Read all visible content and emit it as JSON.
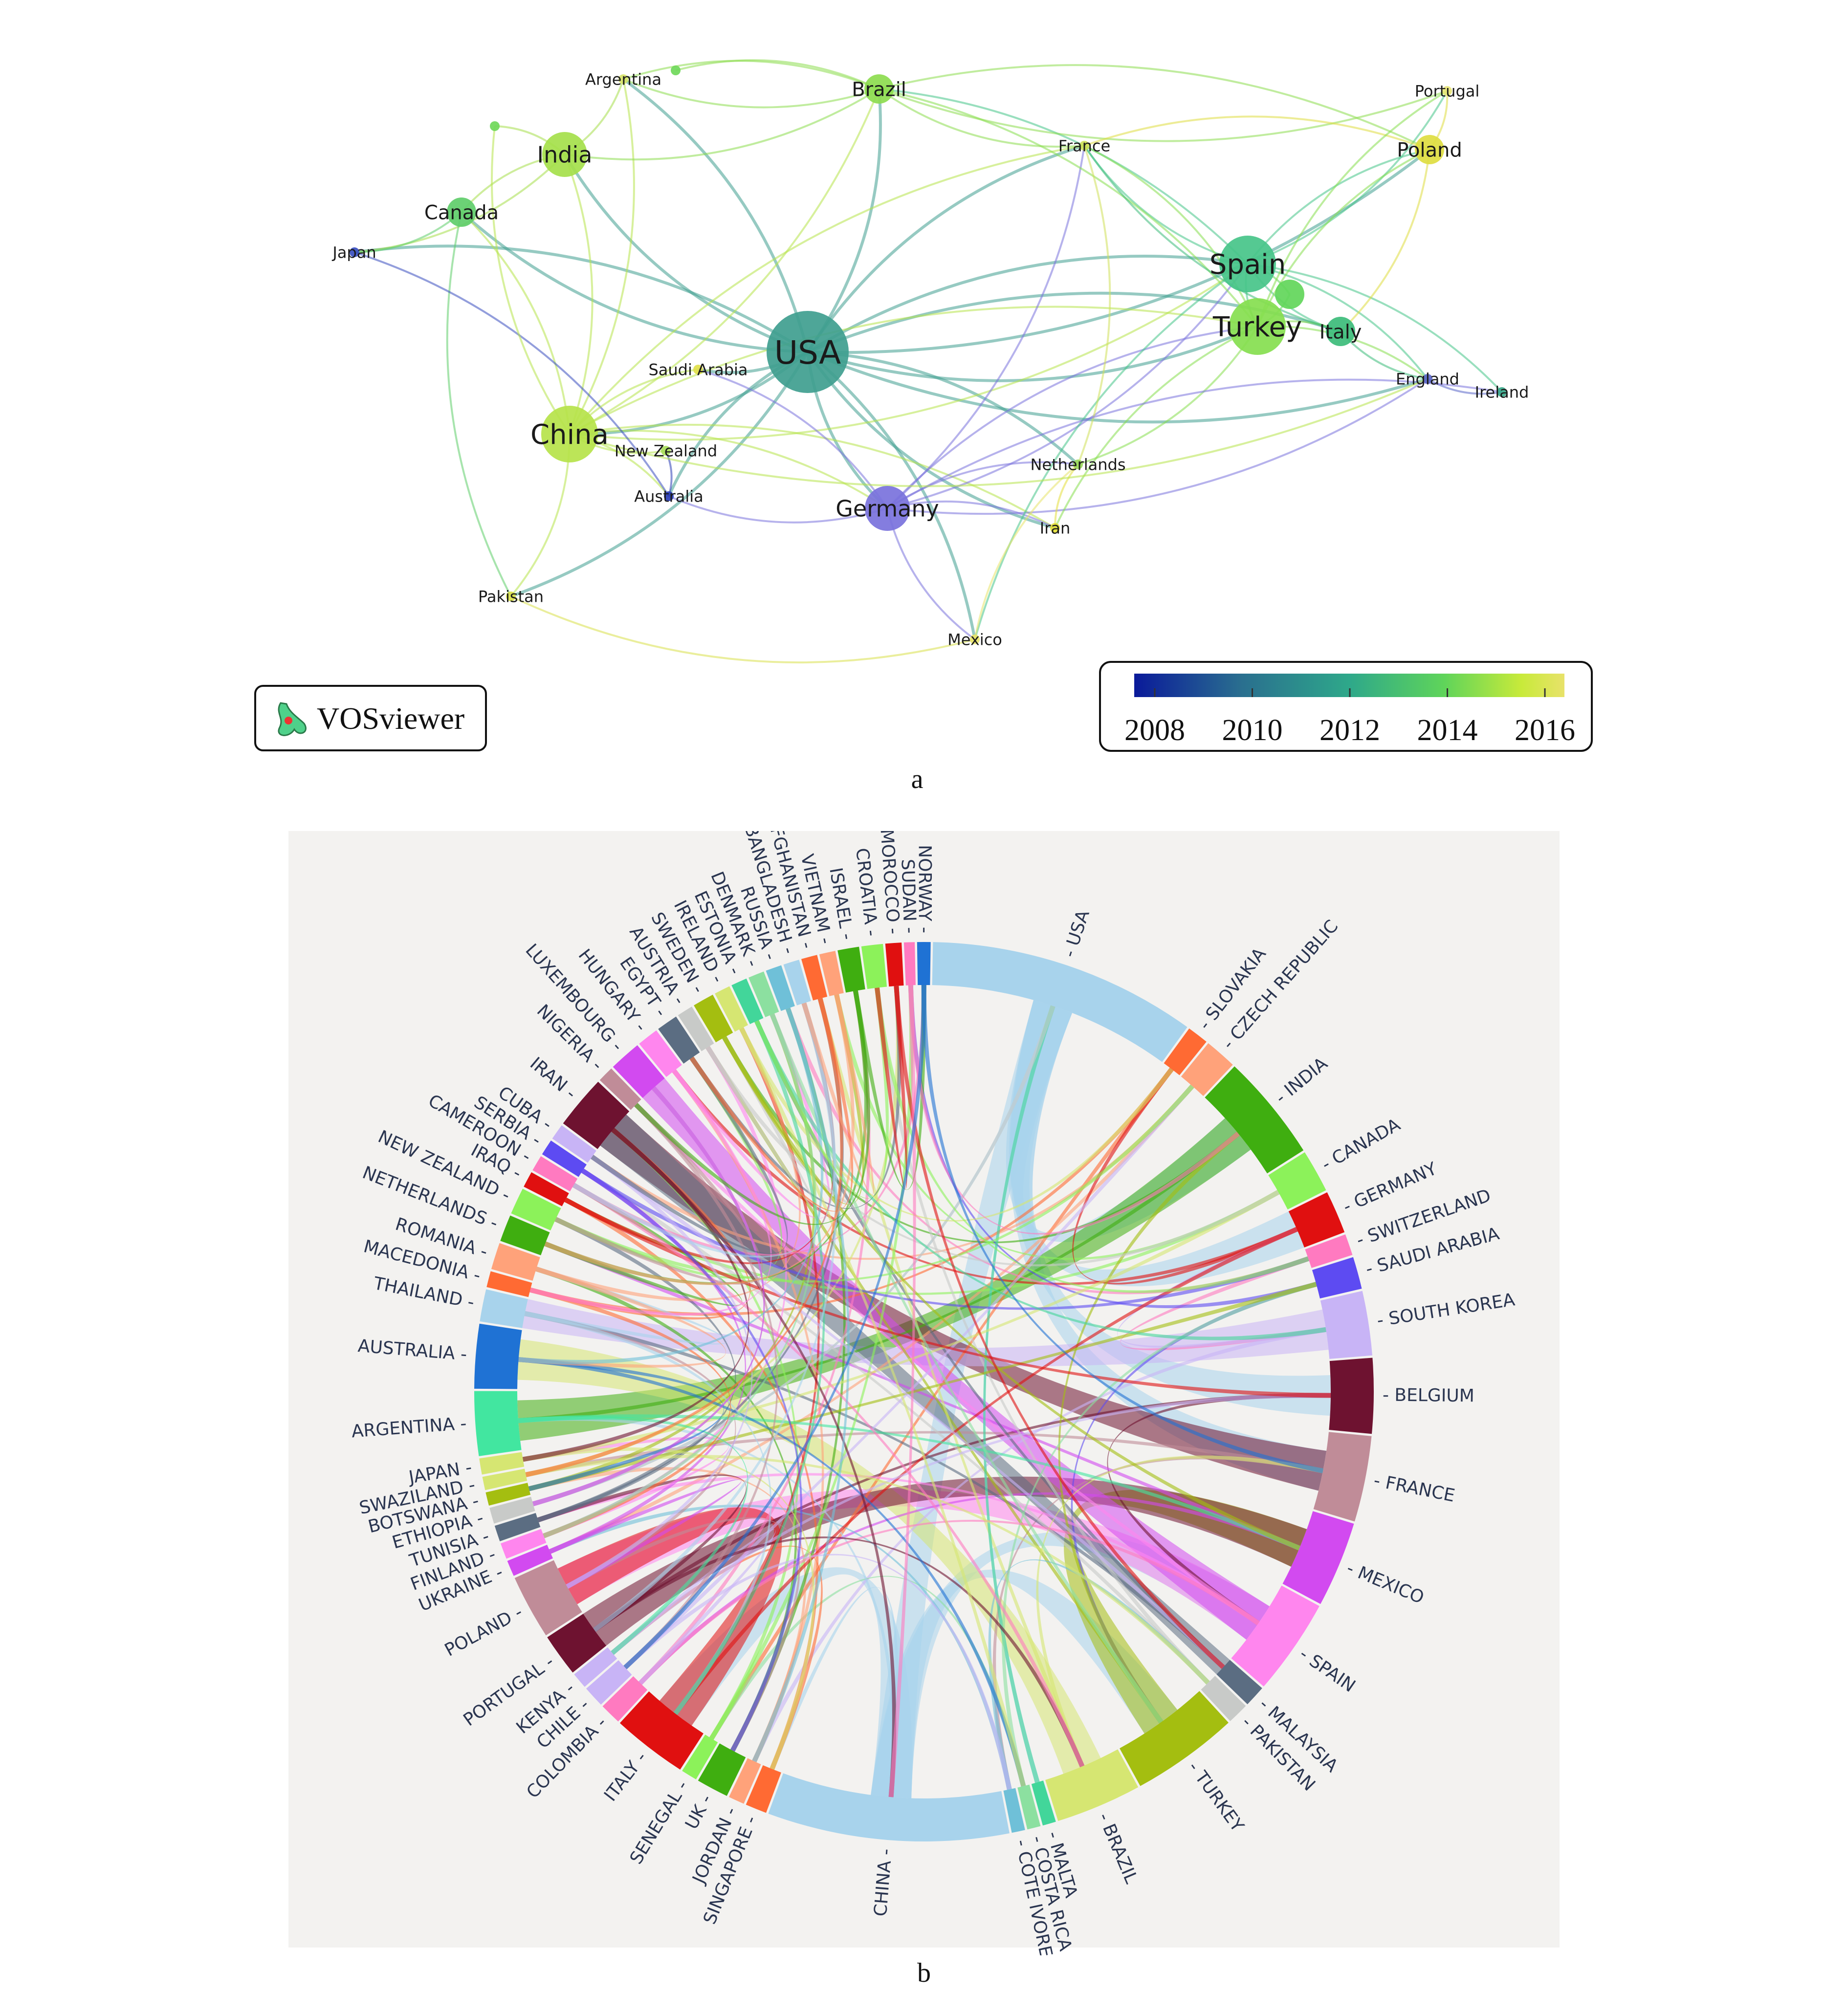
{
  "panel_a": {
    "caption": "a",
    "logo_text": "VOSviewer",
    "colorbar": {
      "ticks": [
        "2008",
        "2010",
        "2012",
        "2014",
        "2016"
      ],
      "stops": [
        "#0a1a9a",
        "#2a6f8f",
        "#2ea88a",
        "#5fd45a",
        "#c8ea3a",
        "#e8e26a"
      ]
    },
    "nodes": [
      {
        "id": "usa",
        "label": "USA",
        "color": "#3f9e8f",
        "size": "xl"
      },
      {
        "id": "china",
        "label": "China",
        "color": "#b6e34a",
        "size": "l"
      },
      {
        "id": "germany",
        "label": "Germany",
        "color": "#7a72dc",
        "size": "m"
      },
      {
        "id": "spain",
        "label": "Spain",
        "color": "#46c489",
        "size": "l"
      },
      {
        "id": "turkey",
        "label": "Turkey",
        "color": "#86de4f",
        "size": "l"
      },
      {
        "id": "india",
        "label": "India",
        "color": "#a5df4b",
        "size": "m"
      },
      {
        "id": "brazil",
        "label": "Brazil",
        "color": "#8ddc4f",
        "size": "s"
      },
      {
        "id": "france",
        "label": "France",
        "color": "#cfe05a",
        "size": "xs"
      },
      {
        "id": "poland",
        "label": "Poland",
        "color": "#dedd40",
        "size": "s"
      },
      {
        "id": "portugal",
        "label": "Portugal",
        "color": "#e9e67a",
        "size": "xs"
      },
      {
        "id": "italy",
        "label": "Italy",
        "color": "#3cbc7a",
        "size": "s"
      },
      {
        "id": "england",
        "label": "England",
        "color": "#5a66c8",
        "size": "xs"
      },
      {
        "id": "ireland",
        "label": "Ireland",
        "color": "#3aa88a",
        "size": "xs"
      },
      {
        "id": "netherlands",
        "label": "Netherlands",
        "color": "#9ad85c",
        "size": "xs"
      },
      {
        "id": "iran",
        "label": "Iran",
        "color": "#e3df3a",
        "size": "xs"
      },
      {
        "id": "mexico",
        "label": "Mexico",
        "color": "#e8e46a",
        "size": "xs"
      },
      {
        "id": "pakistan",
        "label": "Pakistan",
        "color": "#d9e04a",
        "size": "xs"
      },
      {
        "id": "australia",
        "label": "Australia",
        "color": "#2a3db5",
        "size": "xs"
      },
      {
        "id": "newzealand",
        "label": "New Zealand",
        "color": "#a8de5a",
        "size": "xs"
      },
      {
        "id": "saudiarabia",
        "label": "Saudi Arabia",
        "color": "#e1e04a",
        "size": "xs"
      },
      {
        "id": "japan",
        "label": "Japan",
        "color": "#3a4fc0",
        "size": "xs"
      },
      {
        "id": "canada",
        "label": "Canada",
        "color": "#5fcd6a",
        "size": "s"
      },
      {
        "id": "argentina",
        "label": "Argentina",
        "color": "#d8e46a",
        "size": "xs"
      },
      {
        "id": "unl1",
        "label": "",
        "color": "#6fd85a",
        "size": "xs"
      },
      {
        "id": "unl2",
        "label": "",
        "color": "#6fd85a",
        "size": "xs"
      },
      {
        "id": "unl3",
        "label": "",
        "color": "#62d65a",
        "size": "s"
      }
    ],
    "links": [
      [
        "usa",
        "china"
      ],
      [
        "usa",
        "germany"
      ],
      [
        "usa",
        "spain"
      ],
      [
        "usa",
        "turkey"
      ],
      [
        "usa",
        "india"
      ],
      [
        "usa",
        "brazil"
      ],
      [
        "usa",
        "france"
      ],
      [
        "usa",
        "poland"
      ],
      [
        "usa",
        "italy"
      ],
      [
        "usa",
        "england"
      ],
      [
        "usa",
        "canada"
      ],
      [
        "usa",
        "japan"
      ],
      [
        "usa",
        "netherlands"
      ],
      [
        "usa",
        "iran"
      ],
      [
        "usa",
        "mexico"
      ],
      [
        "usa",
        "australia"
      ],
      [
        "usa",
        "saudiarabia"
      ],
      [
        "usa",
        "argentina"
      ],
      [
        "usa",
        "pakistan"
      ],
      [
        "china",
        "india"
      ],
      [
        "china",
        "pakistan"
      ],
      [
        "china",
        "canada"
      ],
      [
        "china",
        "germany"
      ],
      [
        "china",
        "spain"
      ],
      [
        "china",
        "turkey"
      ],
      [
        "china",
        "brazil"
      ],
      [
        "china",
        "france"
      ],
      [
        "china",
        "newzealand"
      ],
      [
        "china",
        "australia"
      ],
      [
        "china",
        "argentina"
      ],
      [
        "china",
        "iran"
      ],
      [
        "germany",
        "spain"
      ],
      [
        "germany",
        "turkey"
      ],
      [
        "germany",
        "france"
      ],
      [
        "germany",
        "iran"
      ],
      [
        "germany",
        "mexico"
      ],
      [
        "germany",
        "australia"
      ],
      [
        "germany",
        "england"
      ],
      [
        "germany",
        "netherlands"
      ],
      [
        "spain",
        "turkey"
      ],
      [
        "spain",
        "france"
      ],
      [
        "spain",
        "italy"
      ],
      [
        "spain",
        "poland"
      ],
      [
        "spain",
        "brazil"
      ],
      [
        "spain",
        "england"
      ],
      [
        "spain",
        "portugal"
      ],
      [
        "spain",
        "ireland"
      ],
      [
        "spain",
        "mexico"
      ],
      [
        "turkey",
        "italy"
      ],
      [
        "turkey",
        "france"
      ],
      [
        "turkey",
        "poland"
      ],
      [
        "turkey",
        "iran"
      ],
      [
        "turkey",
        "netherlands"
      ],
      [
        "turkey",
        "brazil"
      ],
      [
        "turkey",
        "england"
      ],
      [
        "brazil",
        "france"
      ],
      [
        "brazil",
        "poland"
      ],
      [
        "brazil",
        "portugal"
      ],
      [
        "brazil",
        "india"
      ],
      [
        "brazil",
        "argentina"
      ],
      [
        "france",
        "poland"
      ],
      [
        "france",
        "italy"
      ],
      [
        "france",
        "netherlands"
      ],
      [
        "poland",
        "portugal"
      ],
      [
        "poland",
        "italy"
      ],
      [
        "england",
        "ireland"
      ],
      [
        "england",
        "italy"
      ],
      [
        "india",
        "canada"
      ],
      [
        "india",
        "japan"
      ],
      [
        "india",
        "argentina"
      ],
      [
        "canada",
        "japan"
      ],
      [
        "canada",
        "pakistan"
      ],
      [
        "japan",
        "australia"
      ],
      [
        "pakistan",
        "mexico"
      ],
      [
        "mexico",
        "netherlands"
      ],
      [
        "australia",
        "newzealand"
      ],
      [
        "iran",
        "netherlands"
      ],
      [
        "argentina",
        "brazil"
      ],
      [
        "unl1",
        "india"
      ],
      [
        "unl1",
        "china"
      ],
      [
        "unl2",
        "brazil"
      ],
      [
        "unl3",
        "spain"
      ],
      [
        "unl3",
        "turkey"
      ],
      [
        "saudiarabia",
        "china"
      ],
      [
        "saudiarabia",
        "germany"
      ],
      [
        "ireland",
        "germany"
      ],
      [
        "england",
        "china"
      ],
      [
        "portugal",
        "turkey"
      ]
    ]
  },
  "panel_b": {
    "caption": "b",
    "background": "#f3f2f0",
    "countries": [
      {
        "name": "USA",
        "color": "#a8d3ec",
        "weight": 10
      },
      {
        "name": "SLOVAKIA",
        "color": "#ff6a33",
        "weight": 0.8
      },
      {
        "name": "CZECH REPUBLIC",
        "color": "#ffa27a",
        "weight": 1.2
      },
      {
        "name": "INDIA",
        "color": "#3fae10",
        "weight": 4
      },
      {
        "name": "CANADA",
        "color": "#8cf25a",
        "weight": 1.6
      },
      {
        "name": "GERMANY",
        "color": "#e01010",
        "weight": 1.6
      },
      {
        "name": "SWITZERLAND",
        "color": "#ff7ac0",
        "weight": 0.8
      },
      {
        "name": "SAUDI ARABIA",
        "color": "#5d4bf2",
        "weight": 1.2
      },
      {
        "name": "SOUTH KOREA",
        "color": "#c8b4f6",
        "weight": 2.4
      },
      {
        "name": "BELGIUM",
        "color": "#6e1230",
        "weight": 2.8
      },
      {
        "name": "FRANCE",
        "color": "#c08c98",
        "weight": 3.2
      },
      {
        "name": "MEXICO",
        "color": "#d24af0",
        "weight": 3.2
      },
      {
        "name": "SPAIN",
        "color": "#ff86ee",
        "weight": 3.6
      },
      {
        "name": "MALAYSIA",
        "color": "#5b6d82",
        "weight": 0.8
      },
      {
        "name": "PAKISTAN",
        "color": "#c8cac8",
        "weight": 0.8
      },
      {
        "name": "TURKEY",
        "color": "#a4be10",
        "weight": 4
      },
      {
        "name": "BRAZIL",
        "color": "#d6e672",
        "weight": 3.2
      },
      {
        "name": "MALTA",
        "color": "#42d69a",
        "weight": 0.5
      },
      {
        "name": "COSTA RICA",
        "color": "#8ce0a0",
        "weight": 0.5
      },
      {
        "name": "COTE IVORE",
        "color": "#6fc0d8",
        "weight": 0.5
      },
      {
        "name": "CHINA",
        "color": "#a8d3ec",
        "weight": 9
      },
      {
        "name": "SINGAPORE",
        "color": "#ff6a33",
        "weight": 0.8
      },
      {
        "name": "JORDAN",
        "color": "#ffa27a",
        "weight": 0.6
      },
      {
        "name": "UK",
        "color": "#3fae10",
        "weight": 1.2
      },
      {
        "name": "SENEGAL",
        "color": "#8cf25a",
        "weight": 0.6
      },
      {
        "name": "ITALY",
        "color": "#e01010",
        "weight": 2.8
      },
      {
        "name": "COLOMBIA",
        "color": "#ff7ac0",
        "weight": 0.8
      },
      {
        "name": "CHILE",
        "color": "#c8b4f6",
        "weight": 0.8
      },
      {
        "name": "KENYA",
        "color": "#c8b4f6",
        "weight": 0.6
      },
      {
        "name": "PORTUGAL",
        "color": "#6e1230",
        "weight": 1.6
      },
      {
        "name": "POLAND",
        "color": "#c08c98",
        "weight": 2.4
      },
      {
        "name": "UKRAINE",
        "color": "#d24af0",
        "weight": 0.6
      },
      {
        "name": "FINLAND",
        "color": "#ff86ee",
        "weight": 0.6
      },
      {
        "name": "TUNISIA",
        "color": "#5b6d82",
        "weight": 0.6
      },
      {
        "name": "ETHIOPIA",
        "color": "#c8cac8",
        "weight": 0.6
      },
      {
        "name": "BOTSWANA",
        "color": "#a4be10",
        "weight": 0.5
      },
      {
        "name": "SWAZILAND",
        "color": "#d6e672",
        "weight": 0.5
      },
      {
        "name": "JAPAN",
        "color": "#d6e672",
        "weight": 0.6
      },
      {
        "name": "ARGENTINA",
        "color": "#42e6a0",
        "weight": 2.4
      },
      {
        "name": "AUSTRALIA",
        "color": "#1f72d4",
        "weight": 2.4
      },
      {
        "name": "THAILAND",
        "color": "#a8d3ec",
        "weight": 1.2
      },
      {
        "name": "MACEDONIA",
        "color": "#ff6a33",
        "weight": 0.6
      },
      {
        "name": "ROMANIA",
        "color": "#ffa27a",
        "weight": 1.0
      },
      {
        "name": "NETHERLANDS",
        "color": "#3fae10",
        "weight": 1.0
      },
      {
        "name": "NEW ZEALAND",
        "color": "#8cf25a",
        "weight": 1.0
      },
      {
        "name": "IRAQ",
        "color": "#e01010",
        "weight": 0.6
      },
      {
        "name": "CAMEROON",
        "color": "#ff7ac0",
        "weight": 0.6
      },
      {
        "name": "SERBIA",
        "color": "#5d4bf2",
        "weight": 0.6
      },
      {
        "name": "CUBA",
        "color": "#c8b4f6",
        "weight": 0.6
      },
      {
        "name": "IRAN",
        "color": "#6e1230",
        "weight": 2.0
      },
      {
        "name": "NIGERIA",
        "color": "#c08c98",
        "weight": 0.6
      },
      {
        "name": "LUXEMBOURG",
        "color": "#d24af0",
        "weight": 1.2
      },
      {
        "name": "HUNGARY",
        "color": "#ff86ee",
        "weight": 0.8
      },
      {
        "name": "EGYPT",
        "color": "#5b6d82",
        "weight": 0.8
      },
      {
        "name": "AUSTRIA",
        "color": "#c8cac8",
        "weight": 0.6
      },
      {
        "name": "SWEDEN",
        "color": "#a4be10",
        "weight": 0.8
      },
      {
        "name": "IRELAND",
        "color": "#d6e672",
        "weight": 0.6
      },
      {
        "name": "ESTONIA",
        "color": "#42d69a",
        "weight": 0.6
      },
      {
        "name": "DENMARK",
        "color": "#8ce0a0",
        "weight": 0.6
      },
      {
        "name": "RUSSIA",
        "color": "#6fc0d8",
        "weight": 0.6
      },
      {
        "name": "BANGLADESH",
        "color": "#a8d3ec",
        "weight": 0.6
      },
      {
        "name": "AFGHANISTAN",
        "color": "#ff6a33",
        "weight": 0.6
      },
      {
        "name": "VIETNAM",
        "color": "#ffa27a",
        "weight": 0.6
      },
      {
        "name": "ISRAEL",
        "color": "#3fae10",
        "weight": 0.8
      },
      {
        "name": "CROATIA",
        "color": "#8cf25a",
        "weight": 0.8
      },
      {
        "name": "MOROCCO",
        "color": "#e01010",
        "weight": 0.6
      },
      {
        "name": "SUDAN",
        "color": "#ff7ac0",
        "weight": 0.4
      },
      {
        "name": "NORWAY",
        "color": "#1f72d4",
        "weight": 0.5
      }
    ]
  }
}
